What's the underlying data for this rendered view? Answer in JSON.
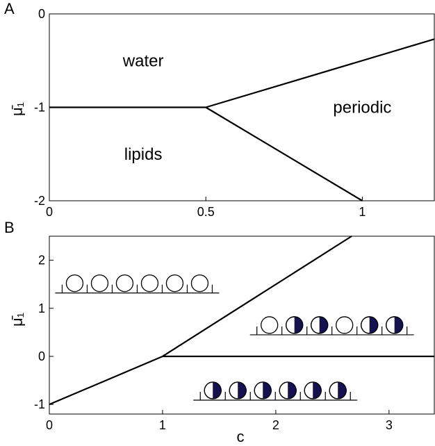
{
  "chart_data": [
    {
      "panel": "A",
      "type": "line",
      "xlabel": "",
      "ylabel": "μ̄₁",
      "xlim": [
        0,
        1.23
      ],
      "ylim": [
        -2,
        0
      ],
      "xticks": [
        "0",
        "0.5",
        "1"
      ],
      "xtick_values": [
        0,
        0.5,
        1
      ],
      "yticks": [
        "0",
        "-1",
        "-2"
      ],
      "ytick_values": [
        0,
        -1,
        -2
      ],
      "series": [
        {
          "x": [
            0,
            0.5
          ],
          "y": [
            -1,
            -1
          ]
        },
        {
          "x": [
            0.5,
            1.23
          ],
          "y": [
            -1,
            -0.27
          ]
        },
        {
          "x": [
            0.5,
            1.0
          ],
          "y": [
            -1,
            -2
          ]
        }
      ],
      "regions": [
        {
          "label": "water",
          "x": 0.3,
          "y": -0.5
        },
        {
          "label": "lipids",
          "x": 0.3,
          "y": -1.5
        },
        {
          "label": "periodic",
          "x": 1.0,
          "y": -1.0
        }
      ]
    },
    {
      "panel": "B",
      "type": "line",
      "xlabel": "c",
      "ylabel": "μ̄₁",
      "xlim": [
        0,
        3.4
      ],
      "ylim": [
        -1.2,
        2.5
      ],
      "xticks": [
        "0",
        "1",
        "2",
        "3"
      ],
      "xtick_values": [
        0,
        1,
        2,
        3
      ],
      "yticks": [
        "2",
        "1",
        "0",
        "-1"
      ],
      "ytick_values": [
        2,
        1,
        0,
        -1
      ],
      "series": [
        {
          "x": [
            0,
            1
          ],
          "y": [
            -1,
            0
          ]
        },
        {
          "x": [
            1,
            2.67
          ],
          "y": [
            0,
            2.5
          ]
        },
        {
          "x": [
            1,
            3.4
          ],
          "y": [
            0,
            0
          ]
        }
      ],
      "insets": [
        {
          "name": "water-pattern",
          "x": 0.15,
          "y": 1.55,
          "sites": [
            "empty",
            "empty",
            "empty",
            "empty",
            "empty",
            "empty"
          ]
        },
        {
          "name": "periodic-pattern",
          "x": 1.87,
          "y": 0.68,
          "sites": [
            "empty",
            "half",
            "half",
            "empty",
            "half",
            "half"
          ]
        },
        {
          "name": "lipid-pattern",
          "x": 1.37,
          "y": -0.68,
          "sites": [
            "half",
            "half",
            "half",
            "half",
            "half",
            "half"
          ]
        }
      ]
    }
  ],
  "panel_labels": {
    "a": "A",
    "b": "B"
  },
  "colors": {
    "axis": "#000000",
    "fill": "#15124f",
    "background": "#ffffff"
  }
}
